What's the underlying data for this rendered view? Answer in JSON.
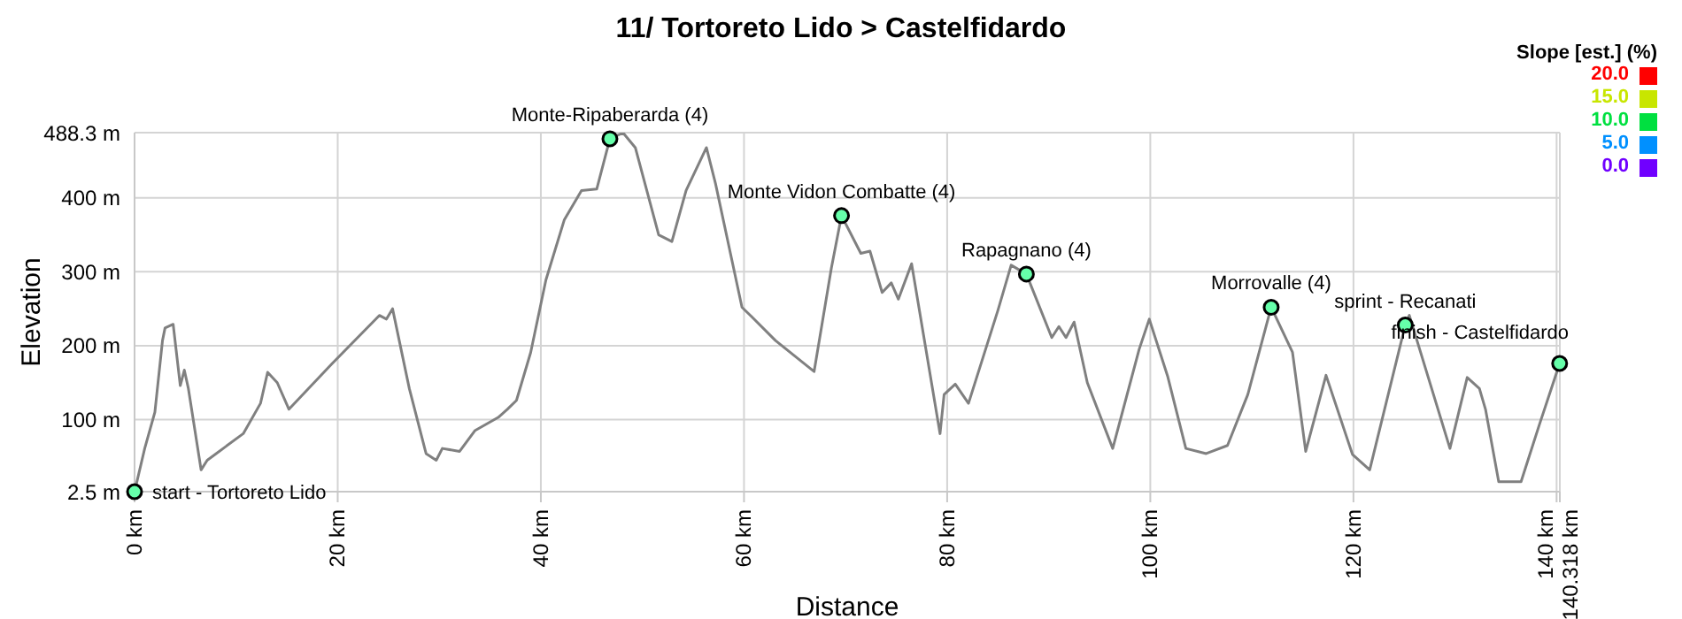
{
  "chart_data": {
    "type": "line",
    "title": "11/ Tortoreto Lido > Castelfidardo",
    "xlabel": "Distance",
    "ylabel": "Elevation",
    "clabel": "Slope [est.] (%)",
    "cticks": [
      {
        "value": 20,
        "label": "20.0"
      },
      {
        "value": 15,
        "label": "15.0"
      },
      {
        "value": 10,
        "label": "10.0"
      },
      {
        "value": 5,
        "label": "5.0"
      },
      {
        "value": 0,
        "label": "0.0"
      }
    ],
    "colors": [
      "#ff0000",
      "#c8e600",
      "#00e040",
      "#0090ff",
      "#7000ff"
    ],
    "x": [
      0,
      1.0,
      2.0,
      2.75,
      3.0,
      3.8,
      4.5,
      4.9,
      5.3,
      6.55,
      7.15,
      10.7,
      12.4,
      13.1,
      14.05,
      15.2,
      19.4,
      24.1,
      24.8,
      25.4,
      27.05,
      28.7,
      29.7,
      30.3,
      32.0,
      33.5,
      35.8,
      36.7,
      37.6,
      39.0,
      40.5,
      42.3,
      44.0,
      45.5,
      46.8,
      48.1,
      49.3,
      51.6,
      52.9,
      54.3,
      56.3,
      57.2,
      59.8,
      60.7,
      63.1,
      66.9,
      68.6,
      69.6,
      71.5,
      72.4,
      73.6,
      74.5,
      75.2,
      76.5,
      79.3,
      79.7,
      80.8,
      82.1,
      85.0,
      86.3,
      87.8,
      90.3,
      91.0,
      91.7,
      92.5,
      93.8,
      96.3,
      98.9,
      99.9,
      101.7,
      103.5,
      105.5,
      107.6,
      109.6,
      111.9,
      114.0,
      115.3,
      117.3,
      119.9,
      121.6,
      125.1,
      125.5,
      129.5,
      131.2,
      132.4,
      133.0,
      134.3,
      136.5,
      138.3,
      140.3
    ],
    "series": [
      {
        "color": "#808080",
        "values": [
          2.5,
          61,
          110,
          207,
          224,
          229,
          146,
          167,
          142,
          32,
          45,
          81,
          122,
          164,
          150,
          114,
          175,
          241,
          236,
          250,
          142,
          54,
          45,
          61,
          57,
          85,
          103,
          114,
          126,
          191,
          289,
          370,
          410,
          412,
          480,
          488,
          468,
          350,
          341,
          410,
          468,
          419,
          252,
          240,
          207,
          165,
          305,
          376,
          325,
          328,
          272,
          285,
          263,
          311,
          81,
          134,
          148,
          122,
          248,
          309,
          297,
          211,
          226,
          211,
          232,
          150,
          61,
          195,
          236,
          159,
          61,
          54,
          65,
          134,
          252,
          191,
          57,
          160,
          53,
          32,
          228,
          241,
          61,
          157,
          142,
          114,
          16,
          16,
          93,
          176
        ]
      }
    ],
    "xlim": [
      0,
      140.318
    ],
    "xticks": [
      {
        "value": 0,
        "label": "0 km"
      },
      {
        "value": 20,
        "label": "20 km"
      },
      {
        "value": 40,
        "label": "40 km"
      },
      {
        "value": 60,
        "label": "60 km"
      },
      {
        "value": 80,
        "label": "80 km"
      },
      {
        "value": 100,
        "label": "100 km"
      },
      {
        "value": 120,
        "label": "120 km"
      },
      {
        "value": 140,
        "label": "140 km"
      },
      {
        "value": 140.318,
        "label": "140.318 km"
      }
    ],
    "ylim": [
      2.5,
      488.3
    ],
    "yticks": [
      {
        "value": 2.5,
        "label": "2.5 m"
      },
      {
        "value": 100,
        "label": "100 m"
      },
      {
        "value": 200,
        "label": "200 m"
      },
      {
        "value": 300,
        "label": "300 m"
      },
      {
        "value": 400,
        "label": "400 m"
      },
      {
        "value": 488.3,
        "label": "488.3 m"
      }
    ],
    "grid": true,
    "marker": "none",
    "line_style": "solid",
    "annotations": [
      {
        "text": "start - Tortoreto Lido",
        "x": 0,
        "y": 2.5
      },
      {
        "text": "Monte-Ripaberarda (4)",
        "x": 46.8,
        "y": 480
      },
      {
        "text": "Monte Vidon Combatte (4)",
        "x": 69.6,
        "y": 376
      },
      {
        "text": "Rapagnano (4)",
        "x": 87.8,
        "y": 297
      },
      {
        "text": "Morrovalle (4)",
        "x": 111.9,
        "y": 252
      },
      {
        "text": "sprint - Recanati",
        "x": 125.1,
        "y": 228
      },
      {
        "text": "finish - Castelfidardo",
        "x": 140.3,
        "y": 176
      }
    ]
  }
}
